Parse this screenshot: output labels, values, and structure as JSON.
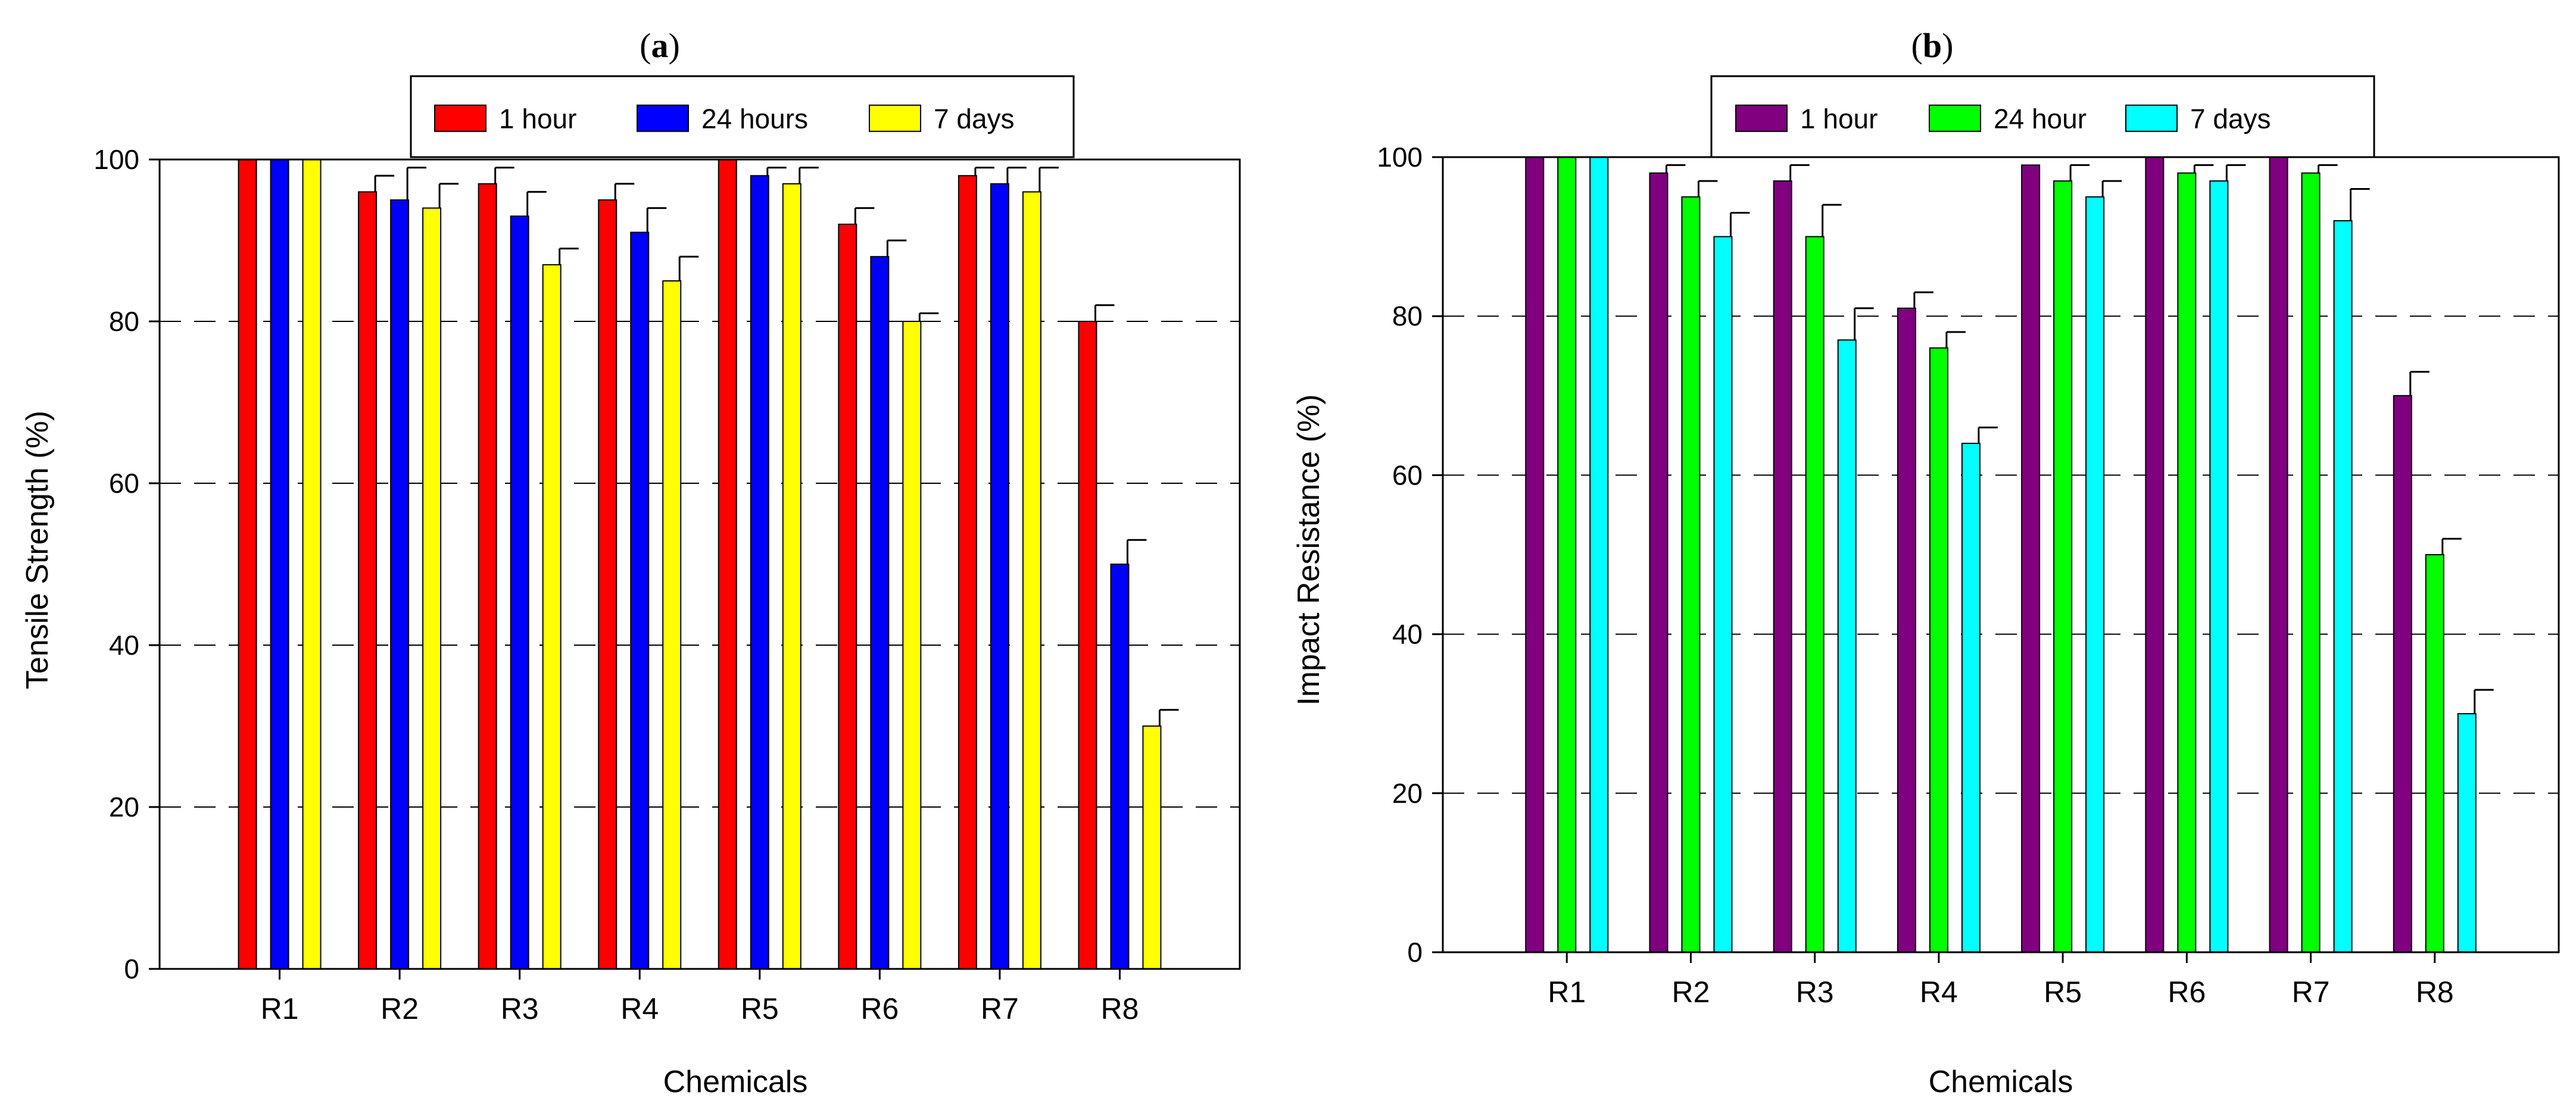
{
  "chart_data": [
    {
      "panel_label_open": "(",
      "panel_letter": "a",
      "panel_label_close": ")",
      "type": "bar",
      "title": "",
      "xlabel": "Chemicals",
      "ylabel": "Tensile Strength (%)",
      "ylim": [
        0,
        100
      ],
      "yticks": [
        "0",
        "20",
        "40",
        "60",
        "80",
        "100"
      ],
      "ytick_values": [
        0,
        20,
        40,
        60,
        80,
        100
      ],
      "grid": "dashed horizontal at 20, 40, 60, 80",
      "legend_position": "top-center",
      "categories": [
        "R1",
        "R2",
        "R3",
        "R4",
        "R5",
        "R6",
        "R7",
        "R8"
      ],
      "series": [
        {
          "name": "1 hour",
          "color": "#ff0000",
          "values": [
            100,
            96,
            97,
            95,
            100,
            92,
            98,
            80
          ],
          "errors": [
            0,
            2,
            2,
            2,
            0,
            2,
            1,
            2
          ]
        },
        {
          "name": "24 hours",
          "color": "#0000ff",
          "values": [
            100,
            95,
            93,
            91,
            98,
            88,
            97,
            50
          ],
          "errors": [
            0,
            4,
            3,
            3,
            1,
            2,
            2,
            3
          ]
        },
        {
          "name": "7 days",
          "color": "#ffff00",
          "values": [
            100,
            94,
            87,
            85,
            97,
            80,
            96,
            30
          ],
          "errors": [
            0,
            3,
            2,
            3,
            2,
            1,
            3,
            2
          ]
        }
      ]
    },
    {
      "panel_label_open": "(",
      "panel_letter": "b",
      "panel_label_close": ")",
      "type": "bar",
      "title": "",
      "xlabel": "Chemicals",
      "ylabel": "Impact Resistance (%)",
      "ylim": [
        0,
        100
      ],
      "yticks": [
        "0",
        "20",
        "40",
        "60",
        "80",
        "100"
      ],
      "ytick_values": [
        0,
        20,
        40,
        60,
        80,
        100
      ],
      "grid": "dashed horizontal at 20, 40, 60, 80",
      "legend_position": "top-center",
      "categories": [
        "R1",
        "R2",
        "R3",
        "R4",
        "R5",
        "R6",
        "R7",
        "R8"
      ],
      "series": [
        {
          "name": "1 hour",
          "color": "#800080",
          "values": [
            100,
            98,
            97,
            81,
            99,
            100,
            100,
            70
          ],
          "errors": [
            0,
            1,
            2,
            2,
            0,
            0,
            0,
            3
          ]
        },
        {
          "name": "24 hour",
          "color": "#00ff00",
          "values": [
            100,
            95,
            90,
            76,
            97,
            98,
            98,
            50
          ],
          "errors": [
            0,
            2,
            4,
            2,
            2,
            1,
            1,
            2
          ]
        },
        {
          "name": "7 days",
          "color": "#00ffff",
          "values": [
            100,
            90,
            77,
            64,
            95,
            97,
            92,
            30
          ],
          "errors": [
            0,
            3,
            4,
            2,
            2,
            2,
            4,
            3
          ]
        }
      ]
    }
  ]
}
